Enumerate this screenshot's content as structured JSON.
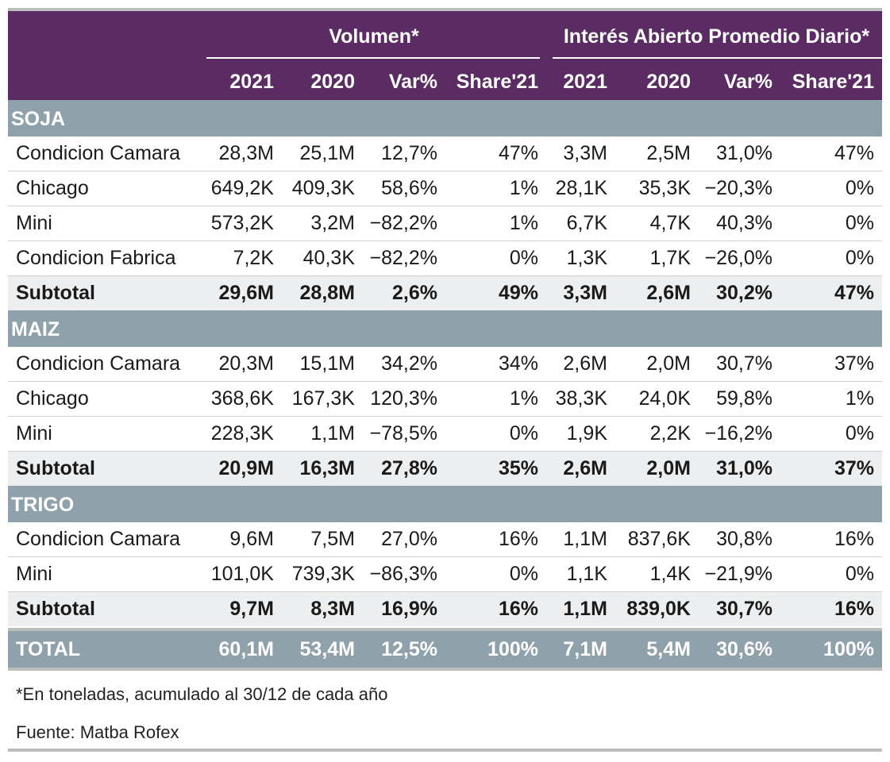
{
  "header": {
    "group_volumen": "Volumen",
    "group_interes": "Interés Abierto Promedio Diario",
    "asterisk": "*",
    "columns": [
      "2021",
      "2020",
      "Var%",
      "Share'21",
      "2021",
      "2020",
      "Var%",
      "Share'21"
    ]
  },
  "sections": [
    {
      "title": "SOJA",
      "rows": [
        {
          "label": "Condicion Camara",
          "values": [
            "28,3M",
            "25,1M",
            "12,7%",
            "47%",
            "3,3M",
            "2,5M",
            "31,0%",
            "47%"
          ]
        },
        {
          "label": "Chicago",
          "values": [
            "649,2K",
            "409,3K",
            "58,6%",
            "1%",
            "28,1K",
            "35,3K",
            "−20,3%",
            "0%"
          ]
        },
        {
          "label": "Mini",
          "values": [
            "573,2K",
            "3,2M",
            "−82,2%",
            "1%",
            "6,7K",
            "4,7K",
            "40,3%",
            "0%"
          ]
        },
        {
          "label": "Condicion Fabrica",
          "values": [
            "7,2K",
            "40,3K",
            "−82,2%",
            "0%",
            "1,3K",
            "1,7K",
            "−26,0%",
            "0%"
          ]
        }
      ],
      "subtotal": {
        "label": "Subtotal",
        "values": [
          "29,6M",
          "28,8M",
          "2,6%",
          "49%",
          "3,3M",
          "2,6M",
          "30,2%",
          "47%"
        ]
      }
    },
    {
      "title": "MAIZ",
      "rows": [
        {
          "label": "Condicion Camara",
          "values": [
            "20,3M",
            "15,1M",
            "34,2%",
            "34%",
            "2,6M",
            "2,0M",
            "30,7%",
            "37%"
          ]
        },
        {
          "label": "Chicago",
          "values": [
            "368,6K",
            "167,3K",
            "120,3%",
            "1%",
            "38,3K",
            "24,0K",
            "59,8%",
            "1%"
          ]
        },
        {
          "label": "Mini",
          "values": [
            "228,3K",
            "1,1M",
            "−78,5%",
            "0%",
            "1,9K",
            "2,2K",
            "−16,2%",
            "0%"
          ]
        }
      ],
      "subtotal": {
        "label": "Subtotal",
        "values": [
          "20,9M",
          "16,3M",
          "27,8%",
          "35%",
          "2,6M",
          "2,0M",
          "31,0%",
          "37%"
        ]
      }
    },
    {
      "title": "TRIGO",
      "rows": [
        {
          "label": "Condicion Camara",
          "values": [
            "9,6M",
            "7,5M",
            "27,0%",
            "16%",
            "1,1M",
            "837,6K",
            "30,8%",
            "16%"
          ]
        },
        {
          "label": "Mini",
          "values": [
            "101,0K",
            "739,3K",
            "−86,3%",
            "0%",
            "1,1K",
            "1,4K",
            "−21,9%",
            "0%"
          ]
        }
      ],
      "subtotal": {
        "label": "Subtotal",
        "values": [
          "9,7M",
          "8,3M",
          "16,9%",
          "16%",
          "1,1M",
          "839,0K",
          "30,7%",
          "16%"
        ]
      }
    }
  ],
  "total": {
    "label": "TOTAL",
    "values": [
      "60,1M",
      "53,4M",
      "12,5%",
      "100%",
      "7,1M",
      "5,4M",
      "30,6%",
      "100%"
    ]
  },
  "footnote": "*En toneladas, acumulado al 30/12 de cada año",
  "source": "Fuente: Matba Rofex",
  "colors": {
    "header_bg": "#5b2c63",
    "section_bg": "#8fa2ab",
    "subtotal_bg": "#eceef0"
  }
}
